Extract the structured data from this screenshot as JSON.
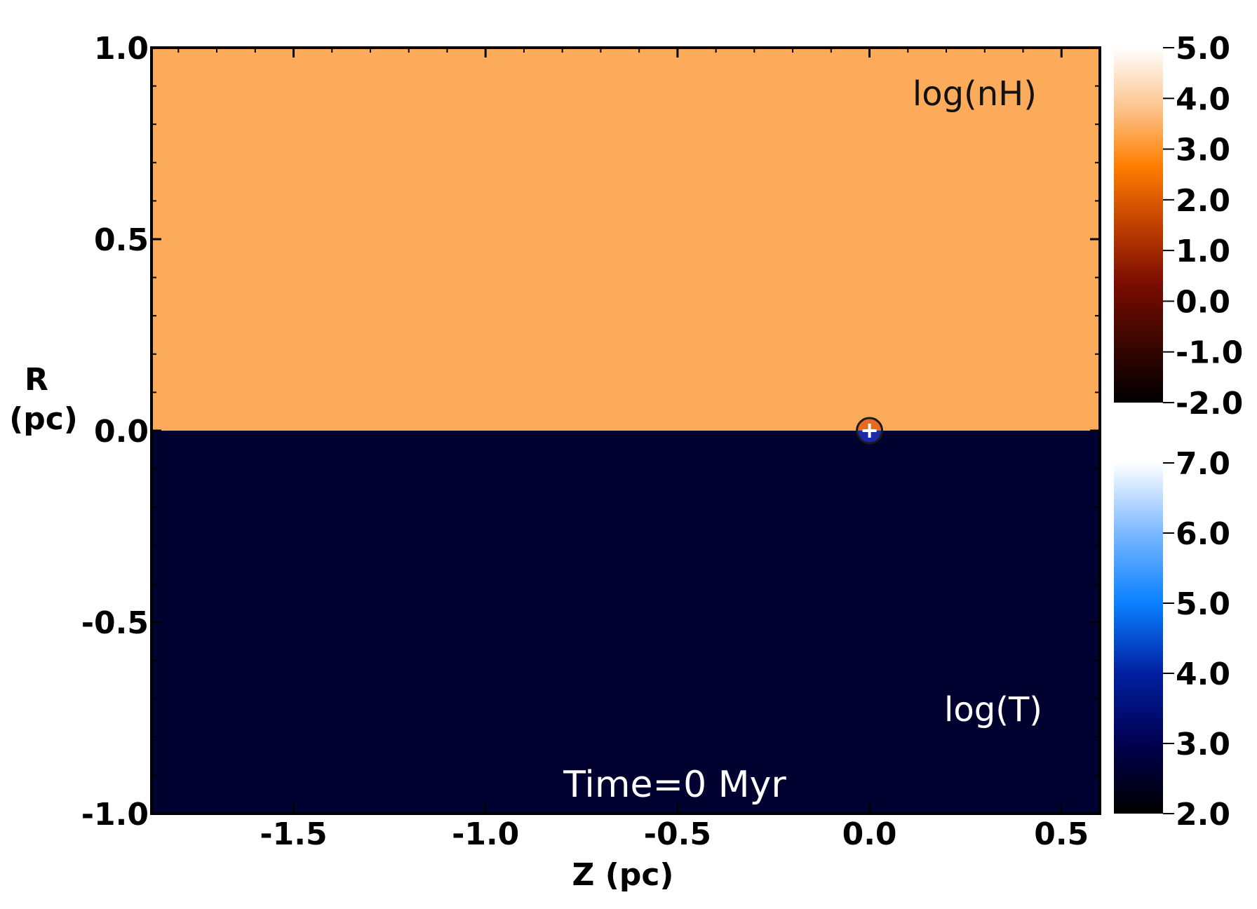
{
  "chart_data": {
    "type": "heatmap",
    "xlabel": "Z (pc)",
    "ylabel_line1": "R",
    "ylabel_line2": "(pc)",
    "xlim": [
      -1.87,
      0.6
    ],
    "ylim": [
      -1.0,
      1.0
    ],
    "x_ticks": [
      -1.5,
      -1.0,
      -0.5,
      0.0,
      0.5
    ],
    "x_tick_labels": [
      "-1.5",
      "-1.0",
      "-0.5",
      "0.0",
      "0.5"
    ],
    "y_ticks": [
      1.0,
      0.5,
      0.0,
      -0.5,
      -1.0
    ],
    "y_tick_labels": [
      "1.0",
      "0.5",
      "0.0",
      "-0.5",
      "-1.0"
    ],
    "panels": [
      {
        "name": "log(nH)",
        "region": "upper",
        "r_range": [
          0.0,
          1.0
        ],
        "value": 3.7,
        "color": "#fbab5a"
      },
      {
        "name": "log(T)",
        "region": "lower",
        "r_range": [
          -1.0,
          0.0
        ],
        "value": 2.4,
        "color": "#020230"
      }
    ],
    "source": {
      "z": 0.0,
      "r": 0.0,
      "marker": "circled-plus",
      "core_color": "#1a2aa8"
    },
    "annotation": "Time=0 Myr",
    "colorbars": [
      {
        "name": "log(nH)",
        "range": [
          -2.0,
          5.0
        ],
        "tick_values": [
          5.0,
          4.0,
          3.0,
          2.0,
          1.0,
          0.0,
          -1.0,
          -2.0
        ],
        "tick_labels": [
          "5.0",
          "4.0",
          "3.0",
          "2.0",
          "1.0",
          "0.0",
          "-1.0",
          "-2.0"
        ],
        "stops": [
          "#ffffff",
          "#fbc690",
          "#ff7e00",
          "#c04000",
          "#7a0c00",
          "#3a0600",
          "#000000"
        ]
      },
      {
        "name": "log(T)",
        "range": [
          2.0,
          7.0
        ],
        "tick_values": [
          7.0,
          6.0,
          5.0,
          4.0,
          3.0,
          2.0
        ],
        "tick_labels": [
          "7.0",
          "6.0",
          "5.0",
          "4.0",
          "3.0",
          "2.0"
        ],
        "stops": [
          "#ffffff",
          "#7ab8ff",
          "#0a80ff",
          "#0020a0",
          "#000050",
          "#000000"
        ]
      }
    ]
  }
}
